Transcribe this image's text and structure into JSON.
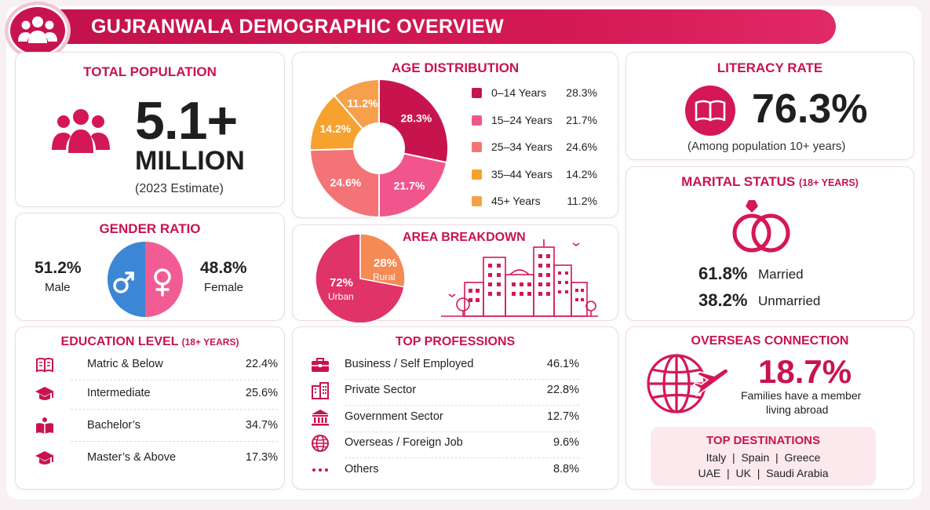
{
  "header": {
    "title": "GUJRANWALA DEMOGRAPHIC OVERVIEW",
    "icon": "people-group-icon",
    "accent": "#c8144e"
  },
  "population": {
    "title": "TOTAL POPULATION",
    "value": "5.1+",
    "unit": "MILLION",
    "note": "(2023 Estimate)"
  },
  "age": {
    "title": "AGE DISTRIBUTION",
    "slices": [
      {
        "label": "0–14 Years",
        "value": 28.3,
        "display": "28.3%",
        "color": "#c8144e"
      },
      {
        "label": "15–24 Years",
        "value": 21.7,
        "display": "21.7%",
        "color": "#f0568c"
      },
      {
        "label": "25–34 Years",
        "value": 24.6,
        "display": "24.6%",
        "color": "#f47376"
      },
      {
        "label": "35–44 Years",
        "value": 14.2,
        "display": "14.2%",
        "color": "#f7a12e"
      },
      {
        "label": "45+ Years",
        "value": 11.2,
        "display": "11.2%",
        "color": "#f7a04b"
      }
    ]
  },
  "literacy": {
    "title": "LITERACY RATE",
    "value": "76.3%",
    "note": "(Among population 10+ years)",
    "icon": "book-icon"
  },
  "gender": {
    "title": "GENDER RATIO",
    "male_value": "51.2%",
    "male_label": "Male",
    "female_value": "48.8%",
    "female_label": "Female",
    "male_color": "#3b87d6",
    "female_color": "#f25c94"
  },
  "area": {
    "title": "AREA BREAKDOWN",
    "urban_value": "72%",
    "urban_label": "Urban",
    "rural_value": "28%",
    "rural_label": "Rural",
    "urban_pct": 72,
    "rural_pct": 28,
    "urban_color": "#e03468",
    "rural_color": "#f58a55"
  },
  "marital": {
    "title": "MARITAL STATUS",
    "subtitle": "(18+ YEARS)",
    "married_value": "61.8%",
    "married_label": "Married",
    "unmarried_value": "38.2%",
    "unmarried_label": "Unmarried",
    "icon": "rings-icon"
  },
  "education": {
    "title": "EDUCATION LEVEL",
    "subtitle": "(18+ YEARS)",
    "items": [
      {
        "label": "Matric & Below",
        "value": "22.4%",
        "icon": "book-icon"
      },
      {
        "label": "Intermediate",
        "value": "25.6%",
        "icon": "graduation-cap-icon"
      },
      {
        "label": "Bachelor’s",
        "value": "34.7%",
        "icon": "reading-person-icon"
      },
      {
        "label": "Master’s & Above",
        "value": "17.3%",
        "icon": "graduation-cap-icon"
      }
    ]
  },
  "professions": {
    "title": "TOP PROFESSIONS",
    "items": [
      {
        "label": "Business / Self Employed",
        "value": "46.1%",
        "icon": "briefcase-icon"
      },
      {
        "label": "Private Sector",
        "value": "22.8%",
        "icon": "office-building-icon"
      },
      {
        "label": "Government Sector",
        "value": "12.7%",
        "icon": "government-building-icon"
      },
      {
        "label": "Overseas / Foreign Job",
        "value": "9.6%",
        "icon": "globe-icon"
      },
      {
        "label": "Others",
        "value": "8.8%",
        "icon": "dots-icon"
      }
    ]
  },
  "overseas": {
    "title": "OVERSEAS CONNECTION",
    "value": "18.7%",
    "note_line1": "Families have a member",
    "note_line2": "living abroad",
    "dest_title": "TOP DESTINATIONS",
    "dest_line1": "Italy  |  Spain  |  Greece",
    "dest_line2": "UAE  |  UK  |  Saudi Arabia",
    "icon": "globe-plane-icon"
  }
}
